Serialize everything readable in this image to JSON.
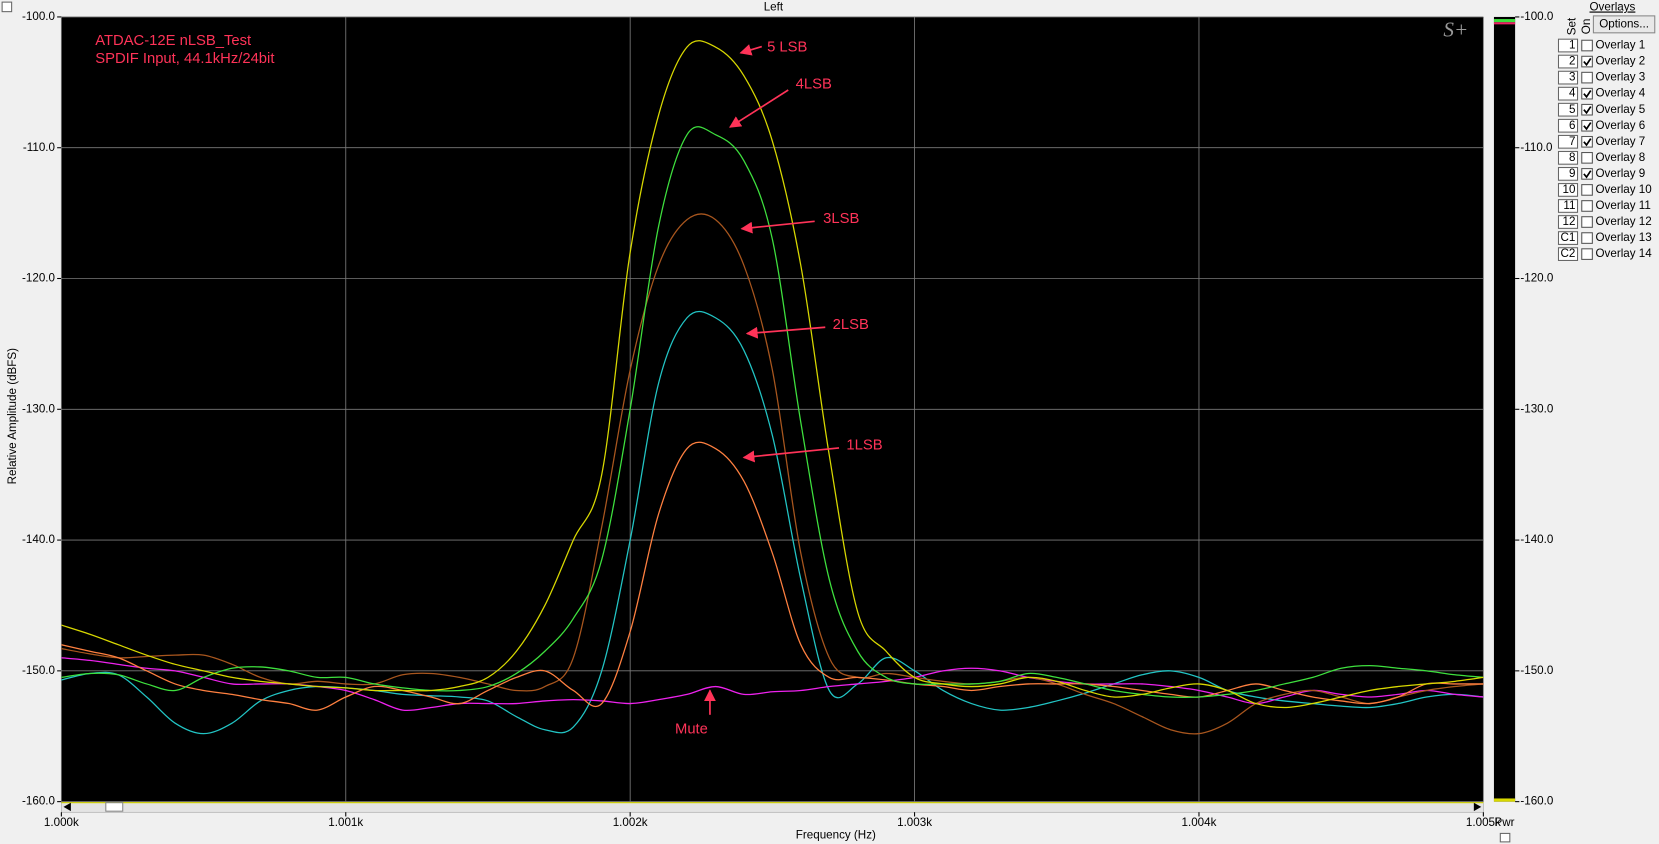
{
  "window_title": "Left",
  "logo": "S+",
  "power_label": "Pwr",
  "chart_data": {
    "type": "line",
    "title_lines": [
      "ATDAC-12E  nLSB_Test",
      "SPDIF Input, 44.1kHz/24bit"
    ],
    "x_label": "Frequency (Hz)",
    "y_label": "Relative Amplitude (dBFS)",
    "xlim": [
      1000,
      1005
    ],
    "xticks": [
      {
        "value": 1000,
        "label": "1.000k"
      },
      {
        "value": 1001,
        "label": "1.001k"
      },
      {
        "value": 1002,
        "label": "1.002k"
      },
      {
        "value": 1003,
        "label": "1.003k"
      },
      {
        "value": 1004,
        "label": "1.004k"
      },
      {
        "value": 1005,
        "label": "1.005k"
      }
    ],
    "ylim": [
      -160,
      -100
    ],
    "yticks": [
      {
        "value": -100,
        "label": "-100.0"
      },
      {
        "value": -110,
        "label": "-110.0"
      },
      {
        "value": -120,
        "label": "-120.0"
      },
      {
        "value": -130,
        "label": "-130.0"
      },
      {
        "value": -140,
        "label": "-140.0"
      },
      {
        "value": -150,
        "label": "-150.0"
      },
      {
        "value": -160,
        "label": "-160.0"
      }
    ],
    "y2lim": [
      -160,
      -100
    ],
    "y2ticks": [
      {
        "value": -100,
        "label": "-100.0"
      },
      {
        "value": -110,
        "label": "-110.0"
      },
      {
        "value": -120,
        "label": "-120.0"
      },
      {
        "value": -130,
        "label": "-130.0"
      },
      {
        "value": -140,
        "label": "-140.0"
      },
      {
        "value": -150,
        "label": "-150.0"
      },
      {
        "value": -160,
        "label": "-160.0"
      }
    ],
    "grid": true,
    "legend_title": "Overlays",
    "legend_button": "Options...",
    "legend_set_header": "Set",
    "legend_on_header": "On",
    "annotations": [
      "5 LSB",
      "4LSB",
      "3LSB",
      "2LSB",
      "1LSB",
      "Mute"
    ],
    "x": [
      1000,
      1000.1,
      1000.2,
      1000.3,
      1000.4,
      1000.5,
      1000.6,
      1000.7,
      1000.8,
      1000.9,
      1001,
      1001.1,
      1001.2,
      1001.3,
      1001.4,
      1001.5,
      1001.6,
      1001.7,
      1001.8,
      1001.9,
      1002,
      1002.1,
      1002.2,
      1002.3,
      1002.4,
      1002.5,
      1002.6,
      1002.7,
      1002.8,
      1002.9,
      1003,
      1003.1,
      1003.2,
      1003.3,
      1003.4,
      1003.5,
      1003.6,
      1003.7,
      1003.8,
      1003.9,
      1004,
      1004.1,
      1004.2,
      1004.3,
      1004.4,
      1004.5,
      1004.6,
      1004.7,
      1004.8,
      1004.9,
      1005
    ],
    "series": [
      {
        "set": "1",
        "name": "Overlay 1",
        "color": "#1a9a1a",
        "on": false
      },
      {
        "set": "2",
        "name": "Overlay 2",
        "color": "#22c4c4",
        "on": true,
        "values": [
          -150.7,
          -150.2,
          -150.3,
          -152,
          -154,
          -154.8,
          -154,
          -152.3,
          -151.5,
          -151.2,
          -151.3,
          -151.5,
          -151.8,
          -151.9,
          -152,
          -152.3,
          -153.5,
          -154.5,
          -154.3,
          -150,
          -140,
          -128,
          -123,
          -123,
          -125.5,
          -132,
          -143,
          -151.5,
          -151,
          -149,
          -150,
          -151.5,
          -152.5,
          -153,
          -152.8,
          -152.3,
          -151.7,
          -151,
          -150.3,
          -150,
          -150.5,
          -151.5,
          -152,
          -152.3,
          -152.5,
          -152.7,
          -152.8,
          -152.5,
          -152,
          -151.8,
          -152
        ]
      },
      {
        "set": "3",
        "name": "Overlay 3",
        "color": "#a020a0",
        "on": false
      },
      {
        "set": "4",
        "name": "Overlay 4",
        "color": "#ee22ee",
        "on": true,
        "values": [
          -149,
          -149.2,
          -149.5,
          -149.8,
          -150,
          -150.5,
          -151,
          -151,
          -151,
          -151.2,
          -151.5,
          -152.2,
          -153,
          -152.8,
          -152.5,
          -152.5,
          -152.5,
          -152.3,
          -152.2,
          -152.3,
          -152.5,
          -152.2,
          -151.8,
          -151.2,
          -151.8,
          -151.6,
          -151.5,
          -151.2,
          -151,
          -150.8,
          -150.5,
          -150,
          -149.8,
          -150,
          -150.5,
          -150.8,
          -151,
          -151,
          -151,
          -151.2,
          -151.5,
          -152,
          -152.5,
          -152,
          -151.5,
          -151.8,
          -152,
          -151.8,
          -151.5,
          -151.8,
          -152
        ]
      },
      {
        "set": "5",
        "name": "Overlay 5",
        "color": "#a8561e",
        "on": true,
        "values": [
          -148.3,
          -148.7,
          -149,
          -148.9,
          -148.8,
          -148.8,
          -149.5,
          -150.5,
          -151,
          -150.8,
          -151,
          -151,
          -150.3,
          -150.2,
          -150.5,
          -151,
          -151.5,
          -151.2,
          -149,
          -139,
          -127,
          -119,
          -115.5,
          -115.5,
          -119,
          -127,
          -141,
          -149,
          -150.5,
          -150.2,
          -150.5,
          -150.8,
          -151,
          -150.8,
          -150.5,
          -151,
          -151.8,
          -152.5,
          -153.5,
          -154.5,
          -154.8,
          -154,
          -152.5,
          -151.8,
          -151.5,
          -152,
          -152.5,
          -152,
          -151.5,
          -151.2,
          -151
        ]
      },
      {
        "set": "6",
        "name": "Overlay 6",
        "color": "#ff8040",
        "on": true,
        "values": [
          -148,
          -148.5,
          -149,
          -150,
          -151,
          -151.5,
          -151.8,
          -152.2,
          -152.5,
          -153,
          -152,
          -151.2,
          -151.5,
          -152,
          -152.5,
          -151.5,
          -150.5,
          -150,
          -151.5,
          -152.5,
          -147,
          -138,
          -133,
          -133,
          -135.5,
          -141,
          -148,
          -150.5,
          -150.5,
          -150.7,
          -151,
          -151.2,
          -151.5,
          -151.2,
          -151,
          -151,
          -151,
          -151.2,
          -151.5,
          -151.8,
          -152,
          -151.5,
          -151,
          -151.5,
          -152,
          -152.3,
          -152.5,
          -152,
          -151,
          -151,
          -151
        ]
      },
      {
        "set": "7",
        "name": "Overlay 7",
        "color": "#3ee03e",
        "on": true,
        "values": [
          -150.5,
          -150.2,
          -150.3,
          -151,
          -151.5,
          -150.5,
          -149.8,
          -149.7,
          -150,
          -150.5,
          -150.5,
          -151,
          -151.3,
          -151.5,
          -151.5,
          -151.2,
          -150.2,
          -148.5,
          -146,
          -141.5,
          -130,
          -116,
          -109,
          -109,
          -111,
          -117,
          -131,
          -143,
          -148.5,
          -150.5,
          -151,
          -151,
          -151,
          -150.8,
          -150.2,
          -150.5,
          -151,
          -151.5,
          -151.8,
          -152,
          -152,
          -151.8,
          -151.5,
          -151,
          -150.5,
          -149.8,
          -149.6,
          -149.8,
          -150,
          -150.3,
          -150.5
        ]
      },
      {
        "set": "8",
        "name": "Overlay 8",
        "color": "#66d8d8",
        "on": false
      },
      {
        "set": "9",
        "name": "Overlay 9",
        "color": "#d8d800",
        "on": true,
        "values": [
          -146.5,
          -147.2,
          -148,
          -148.8,
          -149.5,
          -150,
          -150.5,
          -150.8,
          -151,
          -151.2,
          -151.3,
          -151.5,
          -151.5,
          -151.5,
          -151.2,
          -150.5,
          -148.5,
          -145,
          -140,
          -135,
          -118,
          -107.5,
          -102.3,
          -102.3,
          -104.5,
          -109.5,
          -119,
          -133.5,
          -145.5,
          -148.5,
          -150.5,
          -151,
          -151.2,
          -151,
          -150.5,
          -150.8,
          -151.5,
          -152,
          -151.8,
          -151.3,
          -151,
          -151.5,
          -152.5,
          -152.8,
          -152.5,
          -152,
          -151.5,
          -151.2,
          -151,
          -150.8,
          -150.5
        ]
      },
      {
        "set": "10",
        "name": "Overlay 10",
        "color": "#ff80ff",
        "on": false
      },
      {
        "set": "11",
        "name": "Overlay 11",
        "color": "#808000",
        "on": false
      },
      {
        "set": "12",
        "name": "Overlay 12",
        "color": "#ffa040",
        "on": false
      },
      {
        "set": "C1",
        "name": "Overlay 13",
        "color": "#000000",
        "on": false
      },
      {
        "set": "C2",
        "name": "Overlay 14",
        "color": "#808080",
        "on": false
      }
    ]
  }
}
